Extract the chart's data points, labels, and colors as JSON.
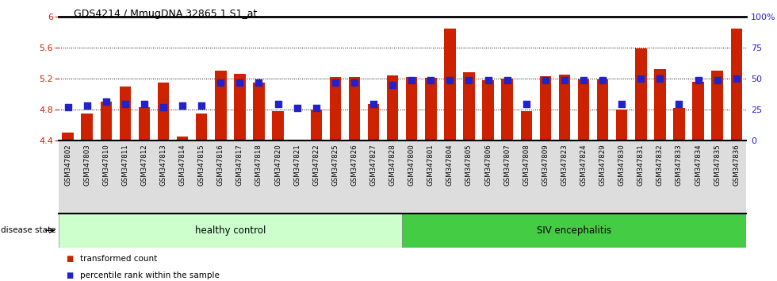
{
  "title": "GDS4214 / MmugDNA.32865.1.S1_at",
  "samples": [
    "GSM347802",
    "GSM347803",
    "GSM347810",
    "GSM347811",
    "GSM347812",
    "GSM347813",
    "GSM347814",
    "GSM347815",
    "GSM347816",
    "GSM347817",
    "GSM347818",
    "GSM347820",
    "GSM347821",
    "GSM347822",
    "GSM347825",
    "GSM347826",
    "GSM347827",
    "GSM347828",
    "GSM347800",
    "GSM347801",
    "GSM347804",
    "GSM347805",
    "GSM347806",
    "GSM347807",
    "GSM347808",
    "GSM347809",
    "GSM347823",
    "GSM347824",
    "GSM347829",
    "GSM347830",
    "GSM347831",
    "GSM347832",
    "GSM347833",
    "GSM347834",
    "GSM347835",
    "GSM347836"
  ],
  "bar_values": [
    4.5,
    4.75,
    4.9,
    5.1,
    4.83,
    5.15,
    4.45,
    4.75,
    5.3,
    5.26,
    5.15,
    4.78,
    4.4,
    4.8,
    5.22,
    5.22,
    4.87,
    5.24,
    5.22,
    5.21,
    5.85,
    5.28,
    5.18,
    5.2,
    4.78,
    5.23,
    5.25,
    5.19,
    5.19,
    4.8,
    5.59,
    5.32,
    4.82,
    5.16,
    5.3,
    5.85
  ],
  "blue_dot_values": [
    4.83,
    4.85,
    4.9,
    4.87,
    4.87,
    4.83,
    4.85,
    4.85,
    5.15,
    5.15,
    5.15,
    4.87,
    4.82,
    4.82,
    5.15,
    5.15,
    4.87,
    5.12,
    5.18,
    5.18,
    5.18,
    5.18,
    5.18,
    5.18,
    4.87,
    5.18,
    5.18,
    5.18,
    5.18,
    4.87,
    5.2,
    5.2,
    4.87,
    5.18,
    5.18,
    5.2
  ],
  "ylim": [
    4.4,
    6.0
  ],
  "yticks": [
    4.4,
    4.8,
    5.2,
    5.6,
    6.0
  ],
  "ytick_labels": [
    "4.4",
    "4.8",
    "5.2",
    "5.6",
    "6"
  ],
  "right_yticks": [
    0,
    25,
    50,
    75,
    100
  ],
  "right_ytick_labels": [
    "0",
    "25",
    "50",
    "75",
    "100%"
  ],
  "bar_color": "#cc2200",
  "dot_color": "#2222cc",
  "healthy_count": 18,
  "healthy_label": "healthy control",
  "siv_label": "SIV encephalitis",
  "healthy_color": "#ccffcc",
  "siv_color": "#44cc44",
  "disease_state_label": "disease state",
  "legend_bar_label": "transformed count",
  "legend_dot_label": "percentile rank within the sample",
  "bar_base": 4.4,
  "grid_lines": [
    4.8,
    5.2,
    5.6
  ],
  "bar_width": 0.6,
  "xtick_bg_color": "#dddddd",
  "top_line_color": "#000000"
}
